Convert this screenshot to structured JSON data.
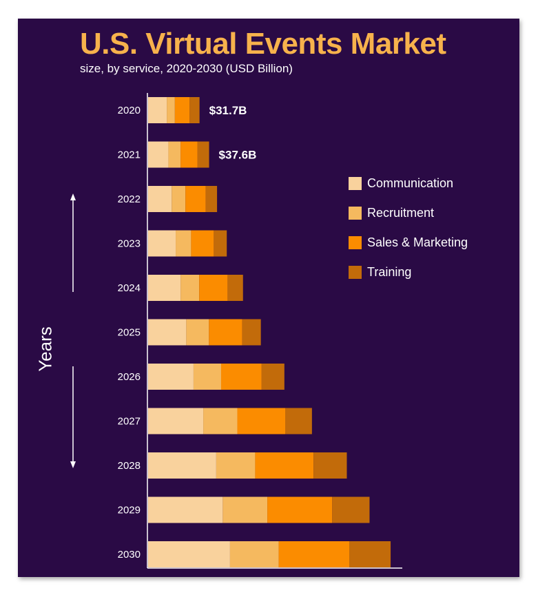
{
  "title": "U.S. Virtual Events Market",
  "subtitle": "size, by service, 2020-2030 (USD Billion)",
  "chart_data": {
    "type": "bar",
    "orientation": "horizontal",
    "stacked": true,
    "ylabel": "Years",
    "categories": [
      "2020",
      "2021",
      "2022",
      "2023",
      "2024",
      "2025",
      "2026",
      "2027",
      "2028",
      "2029",
      "2030"
    ],
    "series": [
      {
        "name": "Communication",
        "color": "#f9d29d",
        "values": [
          11.5,
          12.5,
          14.5,
          17.0,
          20.0,
          23.5,
          28.0,
          34.0,
          42.0,
          46.0,
          50.5
        ]
      },
      {
        "name": "Recruitment",
        "color": "#f5b95f",
        "values": [
          5.0,
          7.5,
          8.5,
          9.5,
          11.5,
          14.0,
          17.0,
          21.0,
          24.0,
          27.5,
          30.0
        ]
      },
      {
        "name": "Sales & Marketing",
        "color": "#fb8c00",
        "values": [
          9.0,
          10.5,
          12.5,
          14.0,
          17.5,
          20.5,
          25.0,
          29.5,
          36.0,
          40.0,
          43.5
        ]
      },
      {
        "name": "Training",
        "color": "#c26b0a",
        "values": [
          6.2,
          7.1,
          7.0,
          8.0,
          9.5,
          11.5,
          14.0,
          16.5,
          20.5,
          23.0,
          25.5
        ]
      }
    ],
    "data_labels": [
      {
        "category": "2020",
        "text": "$31.7B"
      },
      {
        "category": "2021",
        "text": "$37.6B"
      }
    ],
    "legend_position": "right",
    "grid": false
  }
}
